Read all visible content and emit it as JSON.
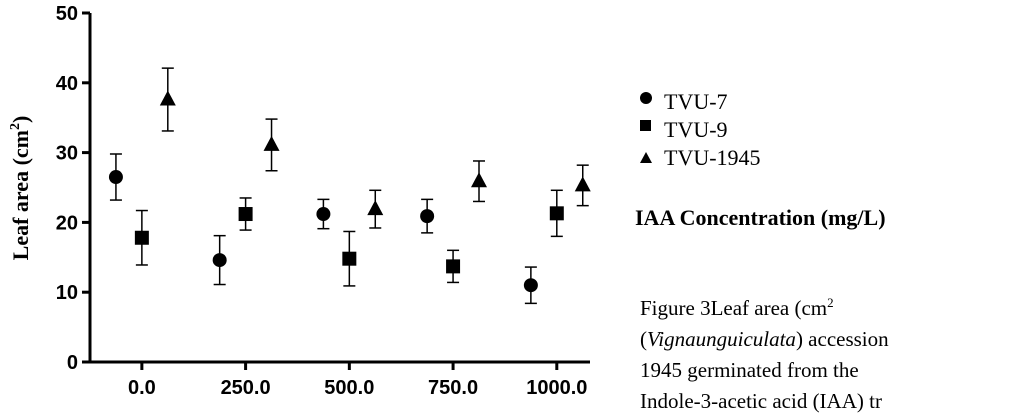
{
  "chart_data": {
    "type": "scatter",
    "ylabel": "Leaf area (cm",
    "ylabel_sup": "2",
    "ylabel_close": ")",
    "xlabel": "IAA Concentration (mg/L)",
    "ylim": [
      0,
      50
    ],
    "yticks": [
      "0",
      "10",
      "20",
      "30",
      "40",
      "50"
    ],
    "xticks": [
      "0.0",
      "250.0",
      "500.0",
      "750.0",
      "1000.0"
    ],
    "xlim": [
      -125,
      1080
    ],
    "legend_position": "right",
    "series": [
      {
        "name": "TVU-7",
        "marker": "circle",
        "x": [
          -62.5,
          187.5,
          437.5,
          687.5,
          937.5
        ],
        "y": [
          26.5,
          14.6,
          21.2,
          20.9,
          11.0
        ],
        "err": [
          3.3,
          3.5,
          2.1,
          2.4,
          2.6
        ]
      },
      {
        "name": "TVU-9",
        "marker": "square",
        "x": [
          0,
          250,
          500,
          750,
          1000
        ],
        "y": [
          17.8,
          21.2,
          14.8,
          13.7,
          21.3
        ],
        "err": [
          3.9,
          2.3,
          3.9,
          2.3,
          3.3
        ]
      },
      {
        "name": "TVU-1945",
        "marker": "triangle",
        "x": [
          62.5,
          312.5,
          562.5,
          812.5,
          1062.5
        ],
        "y": [
          37.6,
          31.1,
          21.9,
          25.9,
          25.3
        ],
        "err": [
          4.5,
          3.7,
          2.7,
          2.9,
          2.9
        ]
      }
    ]
  },
  "caption": {
    "line1_a": "Figure    3Leaf    area    (cm",
    "line1_sup": "2",
    "line2_a": "(",
    "line2_italic": "Vignaunguiculata",
    "line2_b": ")  accession",
    "line3": "1945  germinated  from  the",
    "line4": "Indole-3-acetic acid (IAA) tr"
  }
}
